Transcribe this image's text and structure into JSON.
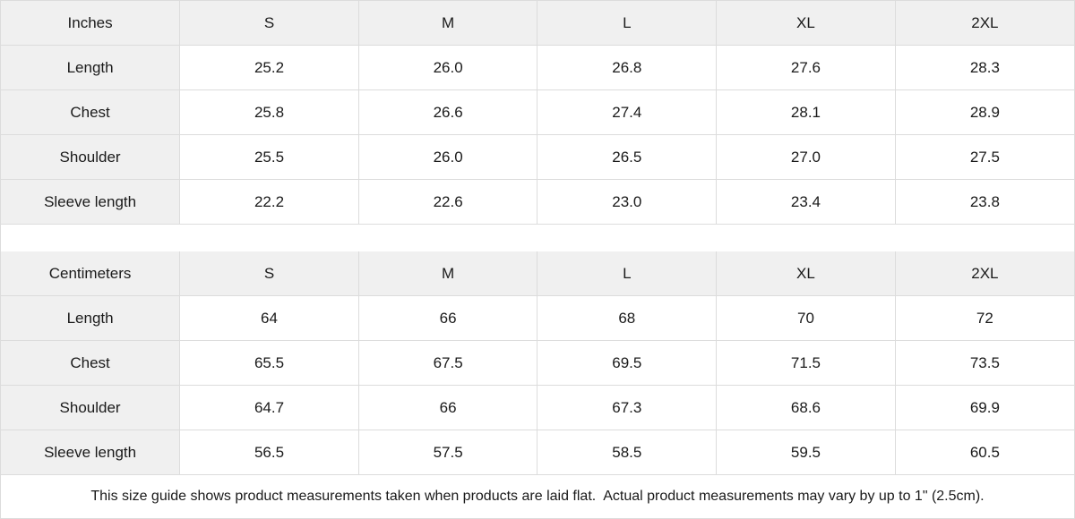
{
  "chart_data": [
    {
      "type": "table",
      "title": "Inches",
      "columns": [
        "Inches",
        "S",
        "M",
        "L",
        "XL",
        "2XL"
      ],
      "rows": [
        [
          "Length",
          "25.2",
          "26.0",
          "26.8",
          "27.6",
          "28.3"
        ],
        [
          "Chest",
          "25.8",
          "26.6",
          "27.4",
          "28.1",
          "28.9"
        ],
        [
          "Shoulder",
          "25.5",
          "26.0",
          "26.5",
          "27.0",
          "27.5"
        ],
        [
          "Sleeve length",
          "22.2",
          "22.6",
          "23.0",
          "23.4",
          "23.8"
        ]
      ]
    },
    {
      "type": "table",
      "title": "Centimeters",
      "columns": [
        "Centimeters",
        "S",
        "M",
        "L",
        "XL",
        "2XL"
      ],
      "rows": [
        [
          "Length",
          "64",
          "66",
          "68",
          "70",
          "72"
        ],
        [
          "Chest",
          "65.5",
          "67.5",
          "69.5",
          "71.5",
          "73.5"
        ],
        [
          "Shoulder",
          "64.7",
          "66",
          "67.3",
          "68.6",
          "69.9"
        ],
        [
          "Sleeve length",
          "56.5",
          "57.5",
          "58.5",
          "59.5",
          "60.5"
        ]
      ]
    }
  ],
  "footer_note": "This size guide shows product measurements taken when products are laid flat.  Actual product measurements may vary by up to 1\" (2.5cm).",
  "colors": {
    "header_bg": "#f0f0f0",
    "border": "#dcdcdc",
    "text": "#1a1a1a",
    "cell_bg": "#ffffff"
  }
}
